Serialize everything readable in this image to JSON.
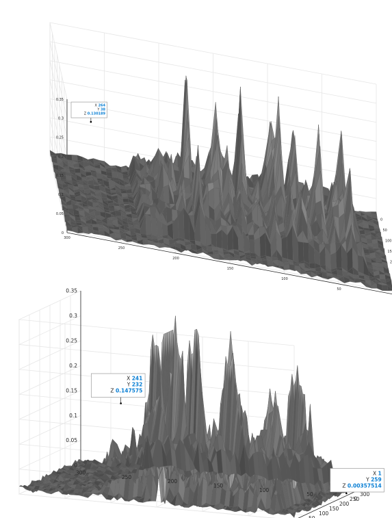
{
  "chart_data": [
    {
      "type": "surface",
      "view": "elevated",
      "x_ticks": [
        "0",
        "50",
        "100",
        "150",
        "200",
        "250",
        "300"
      ],
      "y_ticks": [
        "0",
        "50",
        "100",
        "150",
        "200",
        "250",
        "300",
        "350"
      ],
      "z_ticks": [
        "0",
        "0.05",
        "0.1",
        "0.15",
        "0.2",
        "0.25",
        "0.3",
        "0.35"
      ],
      "xlim": [
        0,
        300
      ],
      "ylim": [
        0,
        360
      ],
      "zlim": [
        0,
        0.35
      ],
      "grid": true,
      "surface_color": "#4d4d4d",
      "datatips": [
        {
          "x_label": "X",
          "x_value": "264",
          "y_label": "Y",
          "y_value": "38",
          "z_label": "Z",
          "z_value": "0.130189"
        }
      ]
    },
    {
      "type": "surface",
      "view": "low-angle",
      "x_ticks": [
        "0",
        "50",
        "100",
        "150",
        "200",
        "250",
        "300"
      ],
      "y_ticks": [
        "0",
        "50",
        "100",
        "150",
        "200",
        "250",
        "300"
      ],
      "z_ticks": [
        "0",
        "0.05",
        "0.1",
        "0.15",
        "0.2",
        "0.25",
        "0.3",
        "0.35"
      ],
      "xlim": [
        0,
        300
      ],
      "ylim": [
        0,
        300
      ],
      "zlim": [
        0,
        0.35
      ],
      "grid": true,
      "surface_color": "#4d4d4d",
      "datatips": [
        {
          "x_label": "X",
          "x_value": "241",
          "y_label": "Y",
          "y_value": "232",
          "z_label": "Z",
          "z_value": "0.147575"
        },
        {
          "x_label": "X",
          "x_value": "1",
          "y_label": "Y",
          "y_value": "259",
          "z_label": "Z",
          "z_value": "0.00357514"
        }
      ]
    }
  ]
}
